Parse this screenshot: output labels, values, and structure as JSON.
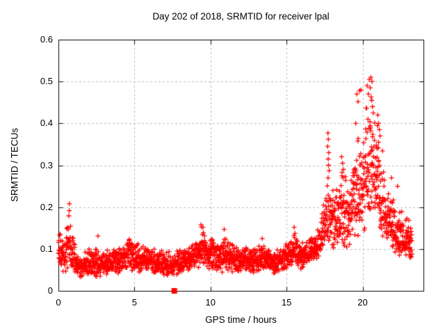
{
  "chart_data": {
    "type": "scatter",
    "title": "Day 202 of 2018, SRMTID for receiver lpal",
    "xlabel": "GPS time / hours",
    "ylabel": "SRMTID / TECUs",
    "xlim": [
      0,
      24
    ],
    "ylim": [
      0,
      0.6
    ],
    "xticks": [
      {
        "v": 0,
        "label": "0"
      },
      {
        "v": 5,
        "label": "5"
      },
      {
        "v": 10,
        "label": "10"
      },
      {
        "v": 15,
        "label": "15"
      },
      {
        "v": 20,
        "label": "20"
      }
    ],
    "yticks": [
      {
        "v": 0,
        "label": "0"
      },
      {
        "v": 0.1,
        "label": "0.1"
      },
      {
        "v": 0.2,
        "label": "0.2"
      },
      {
        "v": 0.3,
        "label": "0.3"
      },
      {
        "v": 0.4,
        "label": "0.4"
      },
      {
        "v": 0.5,
        "label": "0.5"
      },
      {
        "v": 0.6,
        "label": "0.6"
      }
    ],
    "grid": true,
    "legend": "none",
    "colors": {
      "marker": "#ff0000",
      "axis": "#000000",
      "grid": "#9c9c9c",
      "background": "#ffffff",
      "text": "#000000"
    },
    "marker": {
      "shape": "plus",
      "size": 7
    },
    "series_name": "SRMTID",
    "x_data_max": 23.25,
    "points_per_hour": 92,
    "seed": 20180202,
    "envelope": [
      [
        0.0,
        0.05,
        0.17
      ],
      [
        0.4,
        0.04,
        0.12
      ],
      [
        0.7,
        0.06,
        0.21
      ],
      [
        1.0,
        0.04,
        0.13
      ],
      [
        1.5,
        0.03,
        0.09
      ],
      [
        2.0,
        0.035,
        0.11
      ],
      [
        2.6,
        0.03,
        0.1
      ],
      [
        3.2,
        0.04,
        0.1
      ],
      [
        4.0,
        0.04,
        0.11
      ],
      [
        4.7,
        0.05,
        0.13
      ],
      [
        5.3,
        0.04,
        0.12
      ],
      [
        6.0,
        0.04,
        0.11
      ],
      [
        6.7,
        0.04,
        0.1
      ],
      [
        7.4,
        0.03,
        0.1
      ],
      [
        8.1,
        0.04,
        0.105
      ],
      [
        8.8,
        0.05,
        0.115
      ],
      [
        9.4,
        0.055,
        0.16
      ],
      [
        10.0,
        0.05,
        0.13
      ],
      [
        10.6,
        0.04,
        0.12
      ],
      [
        11.0,
        0.05,
        0.14
      ],
      [
        11.6,
        0.04,
        0.11
      ],
      [
        12.2,
        0.05,
        0.115
      ],
      [
        12.9,
        0.04,
        0.11
      ],
      [
        13.5,
        0.05,
        0.12
      ],
      [
        14.2,
        0.04,
        0.105
      ],
      [
        14.8,
        0.045,
        0.11
      ],
      [
        15.4,
        0.055,
        0.15
      ],
      [
        16.0,
        0.05,
        0.12
      ],
      [
        16.6,
        0.06,
        0.13
      ],
      [
        17.2,
        0.07,
        0.16
      ],
      [
        17.7,
        0.09,
        0.28
      ],
      [
        18.1,
        0.1,
        0.24
      ],
      [
        18.6,
        0.1,
        0.3
      ],
      [
        19.1,
        0.1,
        0.26
      ],
      [
        19.6,
        0.12,
        0.4
      ],
      [
        20.1,
        0.14,
        0.44
      ],
      [
        20.6,
        0.15,
        0.48
      ],
      [
        21.1,
        0.12,
        0.4
      ],
      [
        21.6,
        0.1,
        0.26
      ],
      [
        22.1,
        0.08,
        0.22
      ],
      [
        22.6,
        0.07,
        0.2
      ],
      [
        23.0,
        0.06,
        0.18
      ],
      [
        23.25,
        0.08,
        0.16
      ]
    ],
    "outliers": [
      [
        0.72,
        0.208
      ],
      [
        2.6,
        0.131
      ],
      [
        9.38,
        0.158
      ],
      [
        9.5,
        0.152
      ],
      [
        10.9,
        0.147
      ],
      [
        13.4,
        0.125
      ],
      [
        15.5,
        0.152
      ],
      [
        17.72,
        0.377
      ],
      [
        17.75,
        0.362
      ],
      [
        17.7,
        0.345
      ],
      [
        17.78,
        0.33
      ],
      [
        17.74,
        0.315
      ],
      [
        17.76,
        0.3
      ],
      [
        17.8,
        0.287
      ],
      [
        17.73,
        0.27
      ],
      [
        18.62,
        0.32
      ],
      [
        18.68,
        0.305
      ],
      [
        18.74,
        0.29
      ],
      [
        18.65,
        0.275
      ],
      [
        19.55,
        0.4
      ],
      [
        19.62,
        0.47
      ],
      [
        19.7,
        0.452
      ],
      [
        19.8,
        0.478
      ],
      [
        19.9,
        0.48
      ],
      [
        20.3,
        0.49
      ],
      [
        20.35,
        0.41
      ],
      [
        20.38,
        0.47
      ],
      [
        20.45,
        0.505
      ],
      [
        20.5,
        0.485
      ],
      [
        20.55,
        0.51
      ],
      [
        20.56,
        0.463
      ],
      [
        20.6,
        0.455
      ],
      [
        20.62,
        0.5
      ],
      [
        20.65,
        0.44
      ],
      [
        20.7,
        0.425
      ],
      [
        20.95,
        0.34
      ],
      [
        21.0,
        0.42
      ],
      [
        21.05,
        0.4
      ],
      [
        21.1,
        0.385
      ],
      [
        21.15,
        0.37
      ],
      [
        21.05,
        0.355
      ],
      [
        21.9,
        0.27
      ],
      [
        22.3,
        0.25
      ]
    ],
    "special_points": [
      {
        "x": 7.62,
        "y": 0,
        "marker": "filled-square",
        "size": 8
      }
    ]
  }
}
